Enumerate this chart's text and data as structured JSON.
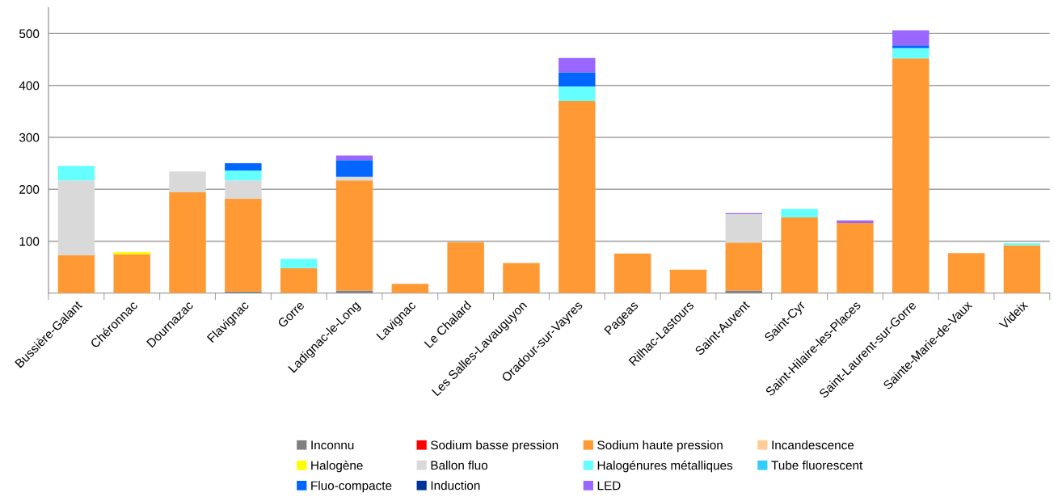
{
  "chart_data": {
    "type": "bar",
    "stacked": true,
    "grid": "y",
    "legend": "bottom",
    "categories": [
      "Bussière-Galant",
      "Chéronnac",
      "Dournazac",
      "Flavignac",
      "Gorre",
      "Ladignac-le-Long",
      "Lavignac",
      "Le Chalard",
      "Les Salles-Lavauguyon",
      "Oradour-sur-Vayres",
      "Pageas",
      "Rilhac-Lastours",
      "Saint-Auvent",
      "Saint-Cyr",
      "Saint-Hilaire-les-Places",
      "Saint-Laurent-sur-Gorre",
      "Sainte-Marie-de-Vaux",
      "Videix"
    ],
    "ylim": [
      0,
      550
    ],
    "yticks": [
      100,
      200,
      300,
      400,
      500
    ],
    "series": [
      {
        "name": "Inconnu",
        "color": "#808080",
        "values": [
          0,
          0,
          0,
          3,
          0,
          5,
          0,
          0,
          0,
          0,
          0,
          0,
          5,
          0,
          0,
          0,
          0,
          0
        ]
      },
      {
        "name": "Sodium basse pression",
        "color": "#ff0000",
        "values": [
          0,
          0,
          0,
          0,
          0,
          0,
          0,
          0,
          0,
          0,
          0,
          0,
          0,
          0,
          0,
          0,
          0,
          0
        ]
      },
      {
        "name": "Sodium haute pression",
        "color": "#ff9933",
        "values": [
          73,
          75,
          194,
          179,
          48,
          212,
          18,
          98,
          58,
          370,
          76,
          45,
          92,
          146,
          135,
          452,
          77,
          92
        ]
      },
      {
        "name": "Incandescence",
        "color": "#ffcc99",
        "values": [
          0,
          0,
          0,
          0,
          0,
          0,
          0,
          0,
          0,
          0,
          0,
          0,
          0,
          0,
          0,
          0,
          0,
          0
        ]
      },
      {
        "name": "Halogène",
        "color": "#ffff00",
        "values": [
          0,
          4,
          0,
          0,
          0,
          0,
          0,
          0,
          0,
          0,
          0,
          0,
          0,
          0,
          0,
          0,
          0,
          0
        ]
      },
      {
        "name": "Ballon fluo",
        "color": "#d9d9d9",
        "values": [
          144,
          0,
          40,
          35,
          0,
          7,
          0,
          0,
          0,
          0,
          0,
          0,
          55,
          0,
          0,
          0,
          0,
          0
        ]
      },
      {
        "name": "Halogénures métalliques",
        "color": "#66ffff",
        "values": [
          28,
          0,
          0,
          19,
          18,
          0,
          0,
          0,
          0,
          28,
          0,
          0,
          0,
          16,
          0,
          20,
          0,
          4
        ]
      },
      {
        "name": "Tube fluorescent",
        "color": "#33ccff",
        "values": [
          0,
          0,
          0,
          0,
          0,
          0,
          0,
          0,
          0,
          0,
          0,
          0,
          0,
          0,
          0,
          0,
          0,
          0
        ]
      },
      {
        "name": "Fluo-compacte",
        "color": "#0066ff",
        "values": [
          0,
          0,
          0,
          14,
          0,
          32,
          0,
          0,
          0,
          27,
          0,
          0,
          0,
          0,
          0,
          5,
          0,
          0
        ]
      },
      {
        "name": "Induction",
        "color": "#003399",
        "values": [
          0,
          0,
          0,
          0,
          0,
          0,
          0,
          0,
          0,
          0,
          0,
          0,
          0,
          0,
          0,
          0,
          0,
          0
        ]
      },
      {
        "name": "LED",
        "color": "#9966ff",
        "values": [
          0,
          0,
          0,
          0,
          0,
          9,
          0,
          0,
          0,
          28,
          0,
          0,
          2,
          0,
          5,
          29,
          0,
          0
        ]
      }
    ]
  }
}
